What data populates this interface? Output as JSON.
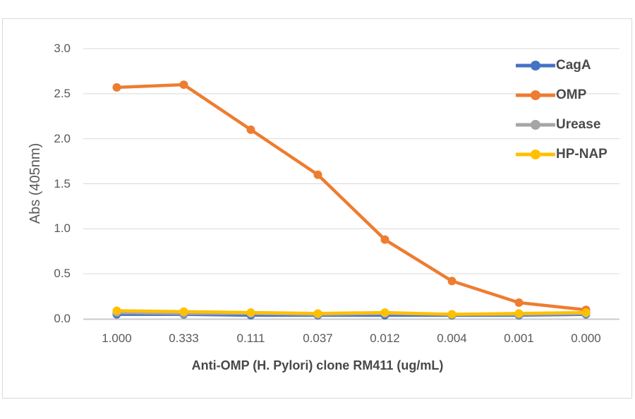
{
  "chart": {
    "background": "#ffffff",
    "frame_border_color": "#d9d9d9",
    "gridline_color": "#d9d9d9",
    "axis_line_color": "#c9c9c9",
    "tick_color": "#595959",
    "title_color": "#484848"
  },
  "chart_data": {
    "type": "line",
    "title": "",
    "xlabel": "Anti-OMP (H. Pylori) clone RM411 (ug/mL)",
    "ylabel": "Abs (405nm)",
    "categories": [
      "1.000",
      "0.333",
      "0.111",
      "0.037",
      "0.012",
      "0.004",
      "0.001",
      "0.000"
    ],
    "y_ticks": [
      "3.0",
      "2.5",
      "2.0",
      "1.5",
      "1.0",
      "0.5",
      "0.0"
    ],
    "ylim": [
      0.0,
      3.0
    ],
    "grid": true,
    "legend_position": "top-right-overlay",
    "series": [
      {
        "name": "CagA",
        "color": "#4472C4",
        "values": [
          0.05,
          0.05,
          0.04,
          0.04,
          0.04,
          0.04,
          0.04,
          0.05
        ]
      },
      {
        "name": "OMP",
        "color": "#ED7D31",
        "values": [
          2.57,
          2.6,
          2.1,
          1.6,
          0.88,
          0.42,
          0.18,
          0.1
        ]
      },
      {
        "name": "Urease",
        "color": "#A5A5A5",
        "values": [
          0.07,
          0.06,
          0.06,
          0.05,
          0.06,
          0.05,
          0.05,
          0.06
        ]
      },
      {
        "name": "HP-NAP",
        "color": "#FFC000",
        "values": [
          0.09,
          0.08,
          0.07,
          0.06,
          0.07,
          0.05,
          0.06,
          0.07
        ]
      }
    ]
  }
}
